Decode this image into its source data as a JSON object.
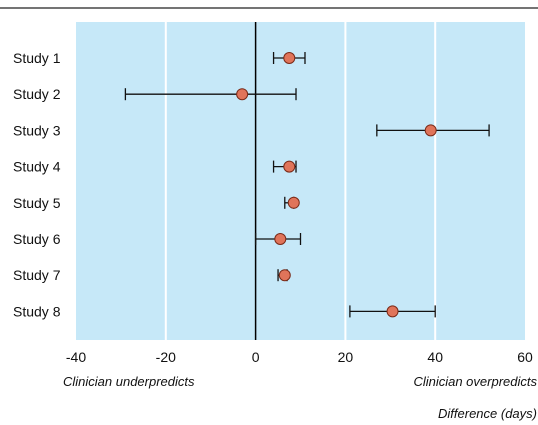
{
  "chart_data": {
    "type": "scatter",
    "title": "",
    "xlabel": "Difference (days)",
    "ylabel": "",
    "xlim": [
      -40,
      60
    ],
    "xticks": [
      -40,
      -20,
      0,
      20,
      40,
      60
    ],
    "xtick_labels": [
      "-40",
      "-20",
      "0",
      "20",
      "40",
      "60"
    ],
    "grid": true,
    "reference_line_x": 0,
    "annotations": {
      "left": "Clinician underpredicts",
      "right": "Clinician overpredicts"
    },
    "colors": {
      "panel": "#c6e8f8",
      "marker": "#e0745a",
      "marker_edge": "#7a2a18",
      "grid": "#ffffff"
    },
    "studies": [
      {
        "label": "Study 1",
        "estimate": 7.5,
        "ci": [
          4,
          11
        ]
      },
      {
        "label": "Study 2",
        "estimate": -3,
        "ci": [
          -29,
          9
        ]
      },
      {
        "label": "Study 3",
        "estimate": 39,
        "ci": [
          27,
          52
        ]
      },
      {
        "label": "Study 4",
        "estimate": 7.5,
        "ci": [
          4,
          9
        ]
      },
      {
        "label": "Study 5",
        "estimate": 8.5,
        "ci": [
          6.5,
          8.5
        ]
      },
      {
        "label": "Study 6",
        "estimate": 5.5,
        "ci": [
          0,
          10
        ]
      },
      {
        "label": "Study 7",
        "estimate": 6.5,
        "ci": [
          5,
          7
        ]
      },
      {
        "label": "Study 8",
        "estimate": 30.5,
        "ci": [
          21,
          40
        ]
      }
    ]
  }
}
